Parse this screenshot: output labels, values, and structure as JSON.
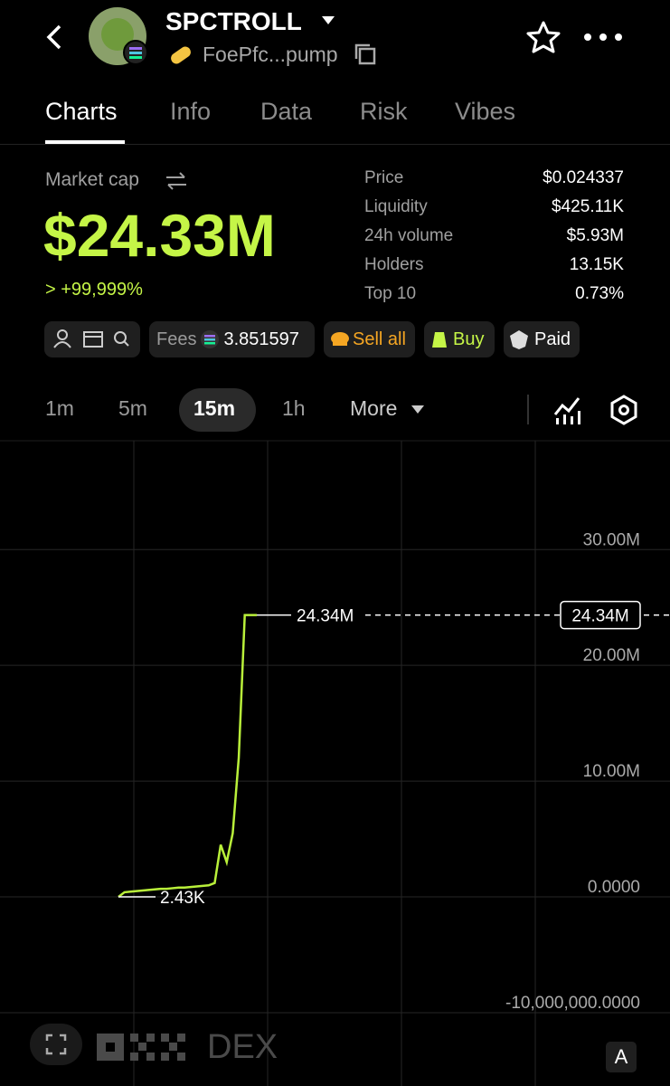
{
  "header": {
    "title": "SPCTROLL",
    "address": "FoePfc...pump"
  },
  "tabs": [
    "Charts",
    "Info",
    "Data",
    "Risk",
    "Vibes"
  ],
  "market": {
    "label": "Market cap",
    "value": "$24.33M",
    "change": "> +99,999%"
  },
  "stats": [
    {
      "label": "Price",
      "value": "$0.024337"
    },
    {
      "label": "Liquidity",
      "value": "$425.11K"
    },
    {
      "label": "24h volume",
      "value": "$5.93M"
    },
    {
      "label": "Holders",
      "value": "13.15K"
    },
    {
      "label": "Top 10",
      "value": "0.73%"
    }
  ],
  "toolbar": {
    "fees_label": "Fees",
    "fees_value": "3.851597",
    "sell": "Sell all",
    "buy": "Buy",
    "paid": "Paid"
  },
  "intervals": [
    "1m",
    "5m",
    "15m",
    "1h",
    "More"
  ],
  "chart_data": {
    "type": "line",
    "color": "#b9f03a",
    "categories": [
      null,
      null,
      null,
      null,
      null,
      null,
      null,
      null,
      null,
      null,
      null,
      null,
      null,
      null,
      null,
      null,
      null,
      null,
      null,
      null,
      null,
      null,
      null,
      null
    ],
    "values": [
      2430,
      400000,
      450000,
      500000,
      550000,
      600000,
      650000,
      700000,
      700000,
      750000,
      800000,
      800000,
      850000,
      900000,
      950000,
      1000000,
      1200000,
      4500000,
      3000000,
      5500000,
      12000000,
      24340000,
      24340000,
      24340000
    ],
    "ylim": [
      -16100000,
      39400000
    ],
    "yticks": [
      {
        "value": 30000000,
        "label": "30.00M"
      },
      {
        "value": 20000000,
        "label": "20.00M"
      },
      {
        "value": 10000000,
        "label": "10.00M"
      },
      {
        "value": 0,
        "label": "0.0000"
      },
      {
        "value": -10000000,
        "label": "-10,000,000.0000"
      }
    ],
    "grid": true,
    "last_price": {
      "value": 24340000,
      "label": "24.34M"
    },
    "low": {
      "value": 2430,
      "label": "2.43K"
    }
  },
  "footer": {
    "brand": "DEX",
    "button": "A"
  }
}
